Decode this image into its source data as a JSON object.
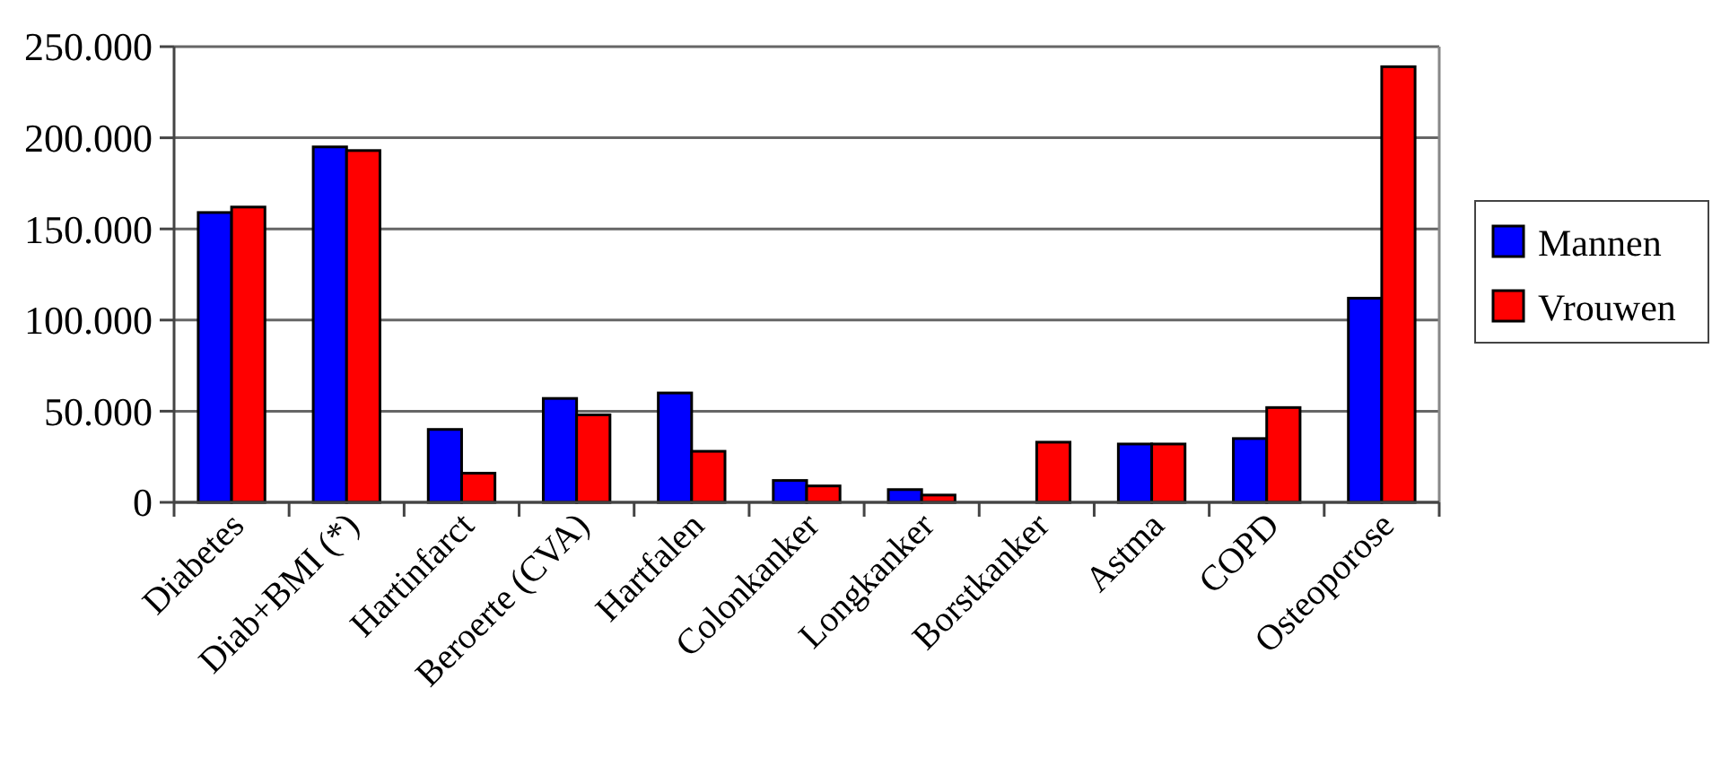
{
  "chart_data": {
    "type": "bar",
    "categories": [
      "Diabetes",
      "Diab+BMI (*)",
      "Hartinfarct",
      "Beroerte (CVA)",
      "Hartfalen",
      "Colonkanker",
      "Longkanker",
      "Borstkanker",
      "Astma",
      "COPD",
      "Osteoporose"
    ],
    "series": [
      {
        "name": "Mannen",
        "color": "#0000ff",
        "values": [
          159000,
          195000,
          40000,
          57000,
          60000,
          12000,
          7000,
          0,
          32000,
          35000,
          112000
        ]
      },
      {
        "name": "Vrouwen",
        "color": "#ff0000",
        "values": [
          162000,
          193000,
          16000,
          48000,
          28000,
          9000,
          4000,
          33000,
          32000,
          52000,
          239000
        ]
      }
    ],
    "ylim": [
      0,
      250000
    ],
    "yticks": [
      {
        "value": 0,
        "label": "0"
      },
      {
        "value": 50000,
        "label": "50.000"
      },
      {
        "value": 100000,
        "label": "100.000"
      },
      {
        "value": 150000,
        "label": "150.000"
      },
      {
        "value": 200000,
        "label": "200.000"
      },
      {
        "value": 250000,
        "label": "250.000"
      }
    ],
    "grid": "y",
    "legend": "right"
  }
}
